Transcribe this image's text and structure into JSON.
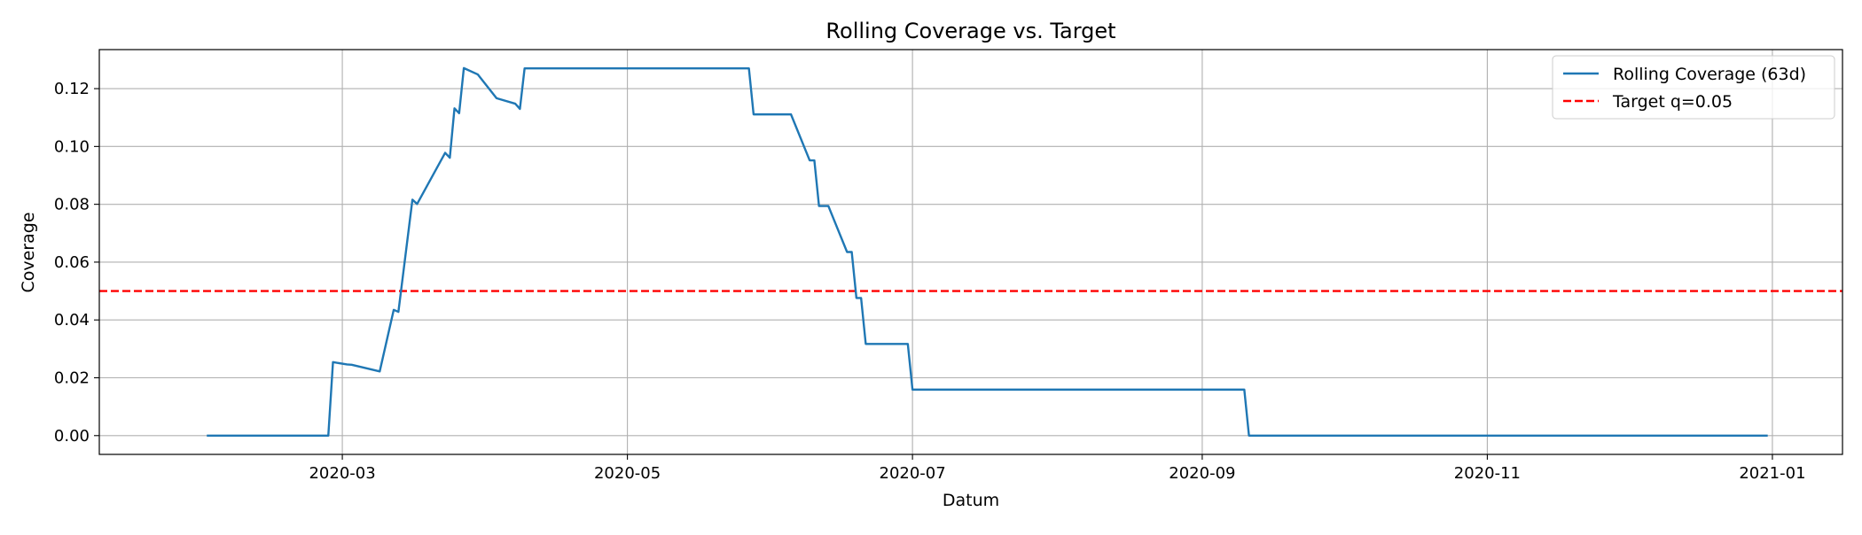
{
  "chart_data": {
    "type": "line",
    "title": "Rolling Coverage vs. Target",
    "xlabel": "Datum",
    "ylabel": "Coverage",
    "x_type": "date",
    "xlim": [
      "2020-01-09",
      "2021-01-16"
    ],
    "ylim": [
      -0.0065,
      0.1335
    ],
    "grid": true,
    "legend_position": "top-right",
    "x_ticks": [
      {
        "value": "2020-03-01",
        "label": "2020-03"
      },
      {
        "value": "2020-05-01",
        "label": "2020-05"
      },
      {
        "value": "2020-07-01",
        "label": "2020-07"
      },
      {
        "value": "2020-09-01",
        "label": "2020-09"
      },
      {
        "value": "2020-11-01",
        "label": "2020-11"
      },
      {
        "value": "2021-01-01",
        "label": "2021-01"
      }
    ],
    "y_ticks": [
      {
        "value": 0.0,
        "label": "0.00"
      },
      {
        "value": 0.02,
        "label": "0.02"
      },
      {
        "value": 0.04,
        "label": "0.04"
      },
      {
        "value": 0.06,
        "label": "0.06"
      },
      {
        "value": 0.08,
        "label": "0.08"
      },
      {
        "value": 0.1,
        "label": "0.10"
      },
      {
        "value": 0.12,
        "label": "0.12"
      }
    ],
    "series": [
      {
        "name": "Rolling Coverage (63d)",
        "color": "#1f77b4",
        "style": "solid",
        "points": [
          {
            "x": "2020-02-01",
            "y": 0.0
          },
          {
            "x": "2020-02-27",
            "y": 0.0
          },
          {
            "x": "2020-02-28",
            "y": 0.0254
          },
          {
            "x": "2020-03-02",
            "y": 0.0246
          },
          {
            "x": "2020-03-03",
            "y": 0.0245
          },
          {
            "x": "2020-03-09",
            "y": 0.0222
          },
          {
            "x": "2020-03-12",
            "y": 0.0435
          },
          {
            "x": "2020-03-13",
            "y": 0.0428
          },
          {
            "x": "2020-03-16",
            "y": 0.0816
          },
          {
            "x": "2020-03-17",
            "y": 0.0801
          },
          {
            "x": "2020-03-23",
            "y": 0.0978
          },
          {
            "x": "2020-03-24",
            "y": 0.0961
          },
          {
            "x": "2020-03-25",
            "y": 0.1132
          },
          {
            "x": "2020-03-26",
            "y": 0.1115
          },
          {
            "x": "2020-03-27",
            "y": 0.1271
          },
          {
            "x": "2020-03-30",
            "y": 0.1249
          },
          {
            "x": "2020-04-03",
            "y": 0.1167
          },
          {
            "x": "2020-04-07",
            "y": 0.1148
          },
          {
            "x": "2020-04-08",
            "y": 0.113
          },
          {
            "x": "2020-04-09",
            "y": 0.127
          },
          {
            "x": "2020-05-27",
            "y": 0.127
          },
          {
            "x": "2020-05-28",
            "y": 0.1111
          },
          {
            "x": "2020-06-05",
            "y": 0.1111
          },
          {
            "x": "2020-06-09",
            "y": 0.0952
          },
          {
            "x": "2020-06-10",
            "y": 0.0952
          },
          {
            "x": "2020-06-11",
            "y": 0.0794
          },
          {
            "x": "2020-06-13",
            "y": 0.0794
          },
          {
            "x": "2020-06-17",
            "y": 0.0635
          },
          {
            "x": "2020-06-18",
            "y": 0.0635
          },
          {
            "x": "2020-06-19",
            "y": 0.0476
          },
          {
            "x": "2020-06-20",
            "y": 0.0476
          },
          {
            "x": "2020-06-21",
            "y": 0.0317
          },
          {
            "x": "2020-06-30",
            "y": 0.0317
          },
          {
            "x": "2020-07-01",
            "y": 0.0159
          },
          {
            "x": "2020-09-10",
            "y": 0.0159
          },
          {
            "x": "2020-09-11",
            "y": 0.0
          },
          {
            "x": "2020-12-31",
            "y": 0.0
          }
        ]
      }
    ],
    "reference_lines": [
      {
        "name": "Target q=0.05",
        "orientation": "horizontal",
        "value": 0.05,
        "color": "#ff0000",
        "style": "dashed"
      }
    ]
  }
}
